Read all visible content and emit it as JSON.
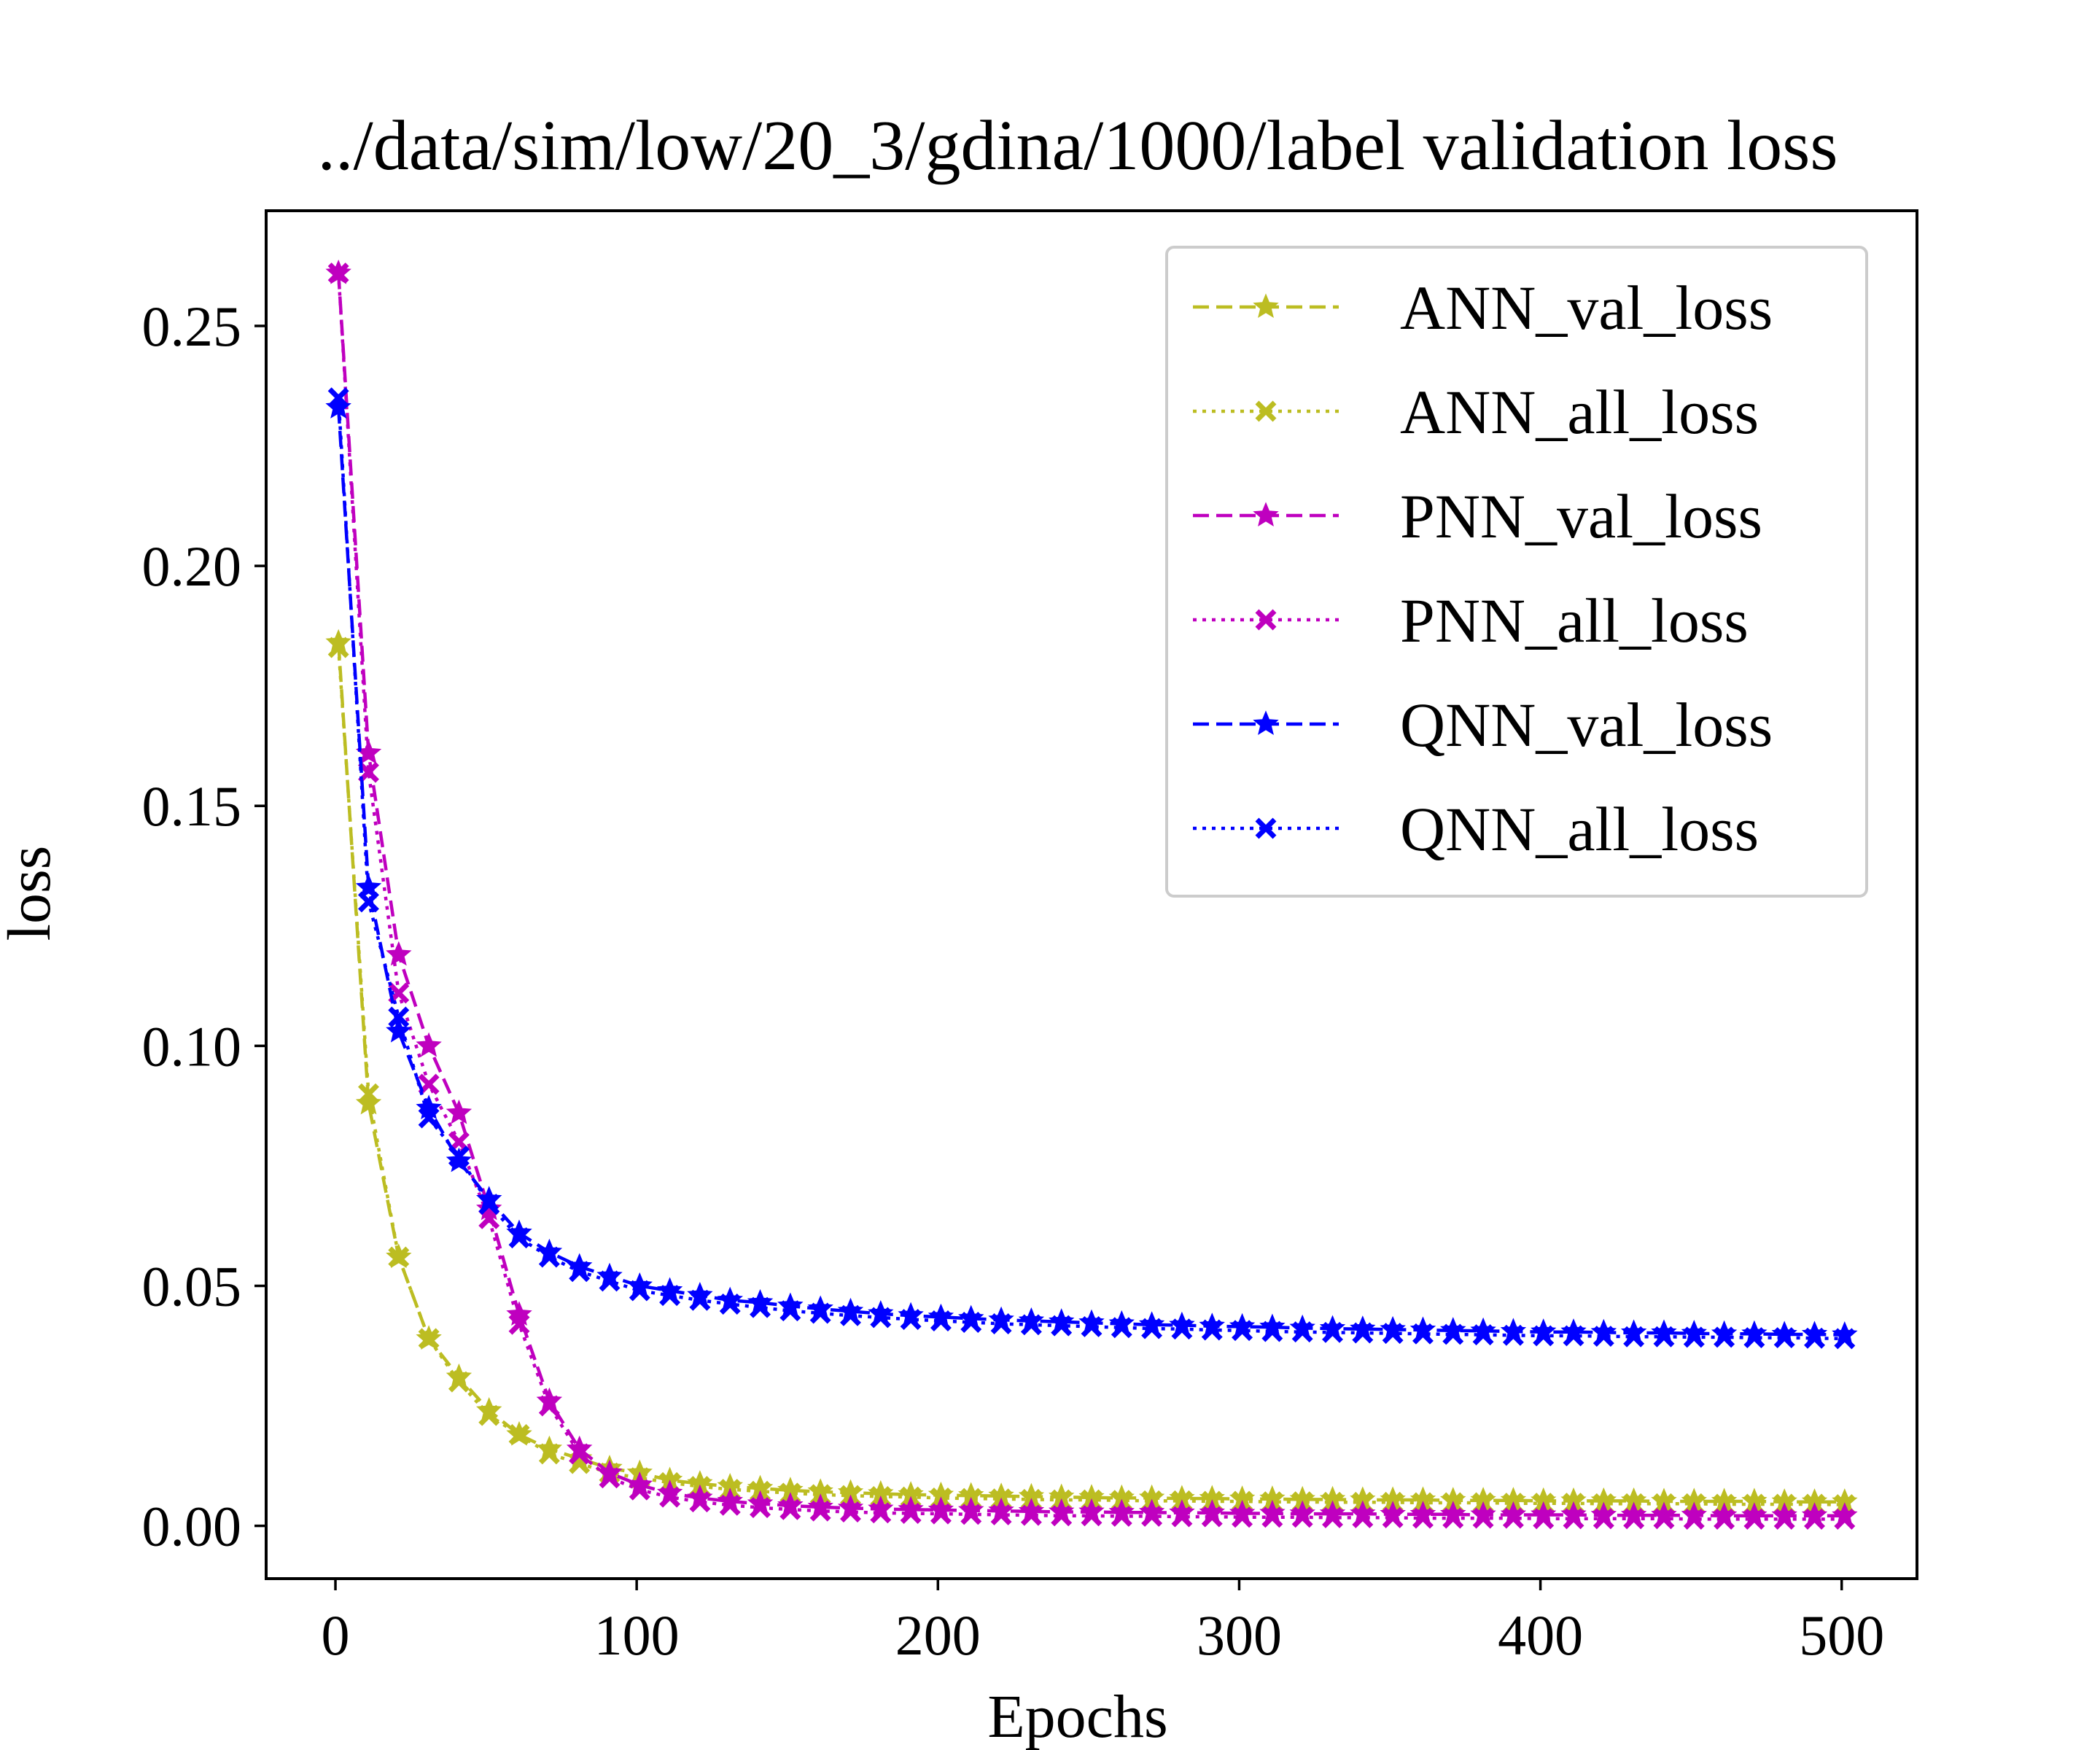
{
  "chart_data": {
    "type": "line",
    "title": "../data/sim/low/20_3/gdina/1000/label validation loss",
    "xlabel": "Epochs",
    "ylabel": "loss",
    "xlim": [
      -23,
      525
    ],
    "ylim": [
      -0.011,
      0.274
    ],
    "xticks": [
      0,
      100,
      200,
      300,
      400,
      500
    ],
    "xtick_labels": [
      "0",
      "100",
      "200",
      "300",
      "400",
      "500"
    ],
    "yticks": [
      0.0,
      0.05,
      0.1,
      0.15,
      0.2,
      0.25
    ],
    "ytick_labels": [
      "0.00",
      "0.05",
      "0.10",
      "0.15",
      "0.20",
      "0.25"
    ],
    "grid": false,
    "legend": {
      "location": "upper right"
    },
    "x": [
      1,
      11,
      21,
      31,
      41,
      51,
      61,
      71,
      81,
      91,
      101,
      111,
      121,
      131,
      141,
      151,
      161,
      171,
      181,
      191,
      201,
      211,
      221,
      231,
      241,
      251,
      261,
      271,
      281,
      291,
      301,
      311,
      321,
      331,
      341,
      351,
      361,
      371,
      381,
      391,
      401,
      411,
      421,
      431,
      441,
      451,
      461,
      471,
      481,
      491,
      501
    ],
    "series": [
      {
        "name": "ANN_val_loss",
        "color": "#bcbd22",
        "linestyle": "dashed",
        "marker": "star",
        "values": [
          0.184,
          0.088,
          0.056,
          0.039,
          0.031,
          0.024,
          0.019,
          0.016,
          0.014,
          0.012,
          0.011,
          0.0095,
          0.0088,
          0.0082,
          0.0078,
          0.0074,
          0.0071,
          0.0069,
          0.0067,
          0.0065,
          0.0064,
          0.0063,
          0.0062,
          0.0061,
          0.006,
          0.0059,
          0.0058,
          0.0058,
          0.0057,
          0.0057,
          0.0056,
          0.0056,
          0.0055,
          0.0055,
          0.0054,
          0.0054,
          0.0054,
          0.0053,
          0.0053,
          0.0053,
          0.0052,
          0.0052,
          0.0052,
          0.0052,
          0.0051,
          0.0051,
          0.0051,
          0.0051,
          0.005,
          0.005,
          0.005
        ]
      },
      {
        "name": "ANN_all_loss",
        "color": "#bcbd22",
        "linestyle": "dotted",
        "marker": "x",
        "values": [
          0.183,
          0.09,
          0.056,
          0.039,
          0.03,
          0.023,
          0.019,
          0.015,
          0.013,
          0.011,
          0.01,
          0.009,
          0.0082,
          0.0076,
          0.0072,
          0.0068,
          0.0065,
          0.0063,
          0.0061,
          0.006,
          0.0058,
          0.0057,
          0.0056,
          0.0055,
          0.0054,
          0.0054,
          0.0053,
          0.0052,
          0.0052,
          0.0051,
          0.0051,
          0.005,
          0.005,
          0.0049,
          0.0049,
          0.0049,
          0.0048,
          0.0048,
          0.0048,
          0.0047,
          0.0047,
          0.0047,
          0.0046,
          0.0046,
          0.0046,
          0.0046,
          0.0045,
          0.0045,
          0.0045,
          0.0045,
          0.0044
        ]
      },
      {
        "name": "PNN_val_loss",
        "color": "#bf00bf",
        "linestyle": "dashed",
        "marker": "star",
        "values": [
          0.261,
          0.161,
          0.119,
          0.1,
          0.086,
          0.066,
          0.044,
          0.026,
          0.016,
          0.011,
          0.0085,
          0.0068,
          0.0058,
          0.0051,
          0.0046,
          0.0042,
          0.0039,
          0.0037,
          0.0035,
          0.0034,
          0.0033,
          0.0032,
          0.0031,
          0.003,
          0.0029,
          0.0029,
          0.0028,
          0.0028,
          0.0027,
          0.0027,
          0.0026,
          0.0026,
          0.0025,
          0.0025,
          0.0025,
          0.0024,
          0.0024,
          0.0024,
          0.0023,
          0.0023,
          0.0023,
          0.0023,
          0.0022,
          0.0022,
          0.0022,
          0.0022,
          0.0021,
          0.0021,
          0.0021,
          0.0021,
          0.0021
        ]
      },
      {
        "name": "PNN_all_loss",
        "color": "#bf00bf",
        "linestyle": "dotted",
        "marker": "x",
        "values": [
          0.261,
          0.157,
          0.111,
          0.092,
          0.08,
          0.064,
          0.042,
          0.025,
          0.015,
          0.01,
          0.0075,
          0.006,
          0.005,
          0.0043,
          0.0038,
          0.0034,
          0.0031,
          0.0029,
          0.0027,
          0.0026,
          0.0025,
          0.0024,
          0.0023,
          0.0022,
          0.0021,
          0.0021,
          0.002,
          0.002,
          0.0019,
          0.0019,
          0.0018,
          0.0018,
          0.0018,
          0.0017,
          0.0017,
          0.0017,
          0.0016,
          0.0016,
          0.0016,
          0.0016,
          0.0015,
          0.0015,
          0.0015,
          0.0015,
          0.0015,
          0.0014,
          0.0014,
          0.0014,
          0.0014,
          0.0014,
          0.0014
        ]
      },
      {
        "name": "QNN_val_loss",
        "color": "#0000ff",
        "linestyle": "dashed",
        "marker": "star",
        "values": [
          0.233,
          0.133,
          0.103,
          0.087,
          0.076,
          0.068,
          0.061,
          0.057,
          0.054,
          0.052,
          0.05,
          0.049,
          0.048,
          0.047,
          0.0465,
          0.0458,
          0.0452,
          0.0447,
          0.0442,
          0.0438,
          0.0435,
          0.0432,
          0.0429,
          0.0427,
          0.0425,
          0.0423,
          0.0421,
          0.0419,
          0.0418,
          0.0416,
          0.0415,
          0.0414,
          0.0412,
          0.0411,
          0.041,
          0.0409,
          0.0408,
          0.0407,
          0.0406,
          0.0405,
          0.0404,
          0.0404,
          0.0403,
          0.0402,
          0.0402,
          0.0401,
          0.04,
          0.04,
          0.0399,
          0.0399,
          0.0398
        ]
      },
      {
        "name": "QNN_all_loss",
        "color": "#0000ff",
        "linestyle": "dotted",
        "marker": "x",
        "values": [
          0.235,
          0.13,
          0.106,
          0.085,
          0.077,
          0.067,
          0.06,
          0.056,
          0.053,
          0.051,
          0.049,
          0.048,
          0.047,
          0.0462,
          0.0455,
          0.0448,
          0.0443,
          0.0438,
          0.0434,
          0.043,
          0.0427,
          0.0424,
          0.0421,
          0.0419,
          0.0417,
          0.0415,
          0.0413,
          0.0411,
          0.041,
          0.0408,
          0.0407,
          0.0405,
          0.0404,
          0.0403,
          0.0402,
          0.0401,
          0.04,
          0.0399,
          0.0398,
          0.0397,
          0.0396,
          0.0396,
          0.0395,
          0.0394,
          0.0394,
          0.0393,
          0.0393,
          0.0392,
          0.0392,
          0.0391,
          0.039
        ]
      }
    ]
  }
}
